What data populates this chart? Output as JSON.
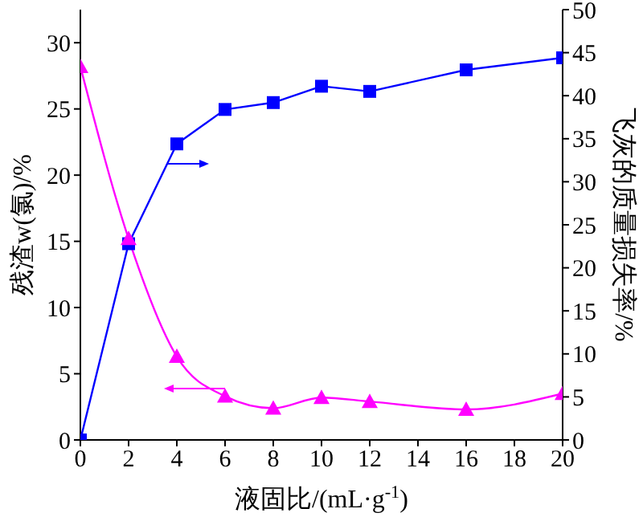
{
  "chart_data": {
    "type": "line",
    "xlabel": "液固比/(mL·g$^{-1}$)",
    "ylabel": "残渣w(氯)/%",
    "y2label": "飞灰的质量损失率/%",
    "x": [
      0,
      2,
      4,
      6,
      8,
      10,
      12,
      16,
      20
    ],
    "series": [
      {
        "color": "#0000ff",
        "axis": "y2",
        "marker": "square",
        "values": [
          0,
          22.8,
          34.4,
          38.4,
          39.2,
          41.1,
          40.5,
          43.0,
          44.4
        ]
      },
      {
        "color": "#ff00ff",
        "marker": "triangle",
        "values": [
          28.2,
          15.2,
          6.3,
          3.3,
          2.4,
          3.2,
          2.9,
          2.3,
          3.5
        ]
      }
    ],
    "xlim": [
      0,
      20
    ],
    "xticks": [
      0,
      2,
      4,
      6,
      8,
      10,
      12,
      14,
      16,
      18,
      20
    ],
    "ylim": [
      0,
      32.5
    ],
    "yticks": [
      0,
      5,
      10,
      15,
      20,
      25,
      30
    ],
    "y2lim": [
      0,
      50
    ],
    "y2ticks": [
      0,
      5,
      10,
      15,
      20,
      25,
      30,
      35,
      40,
      45,
      50
    ],
    "grid": false,
    "legend": false
  }
}
